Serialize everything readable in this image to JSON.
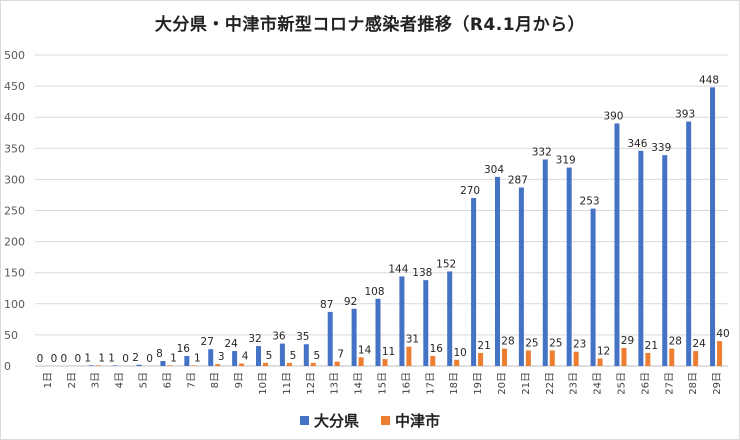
{
  "colors": {
    "oita": "#4472c4",
    "nakatsu": "#ed7d31",
    "grid": "#d9d9d9",
    "axis": "#bfbfbf"
  },
  "chart_data": {
    "type": "bar",
    "title": "大分県・中津市新型コロナ感染者推移（R4.1月から）",
    "xlabel": "",
    "ylabel": "",
    "ylim": [
      0,
      500
    ],
    "yticks": [
      "0",
      "50",
      "100",
      "150",
      "200",
      "250",
      "300",
      "350",
      "400",
      "450",
      "500"
    ],
    "grid": true,
    "legend_position": "bottom",
    "categories": [
      "1日",
      "2日",
      "3日",
      "4日",
      "5日",
      "6日",
      "7日",
      "8日",
      "9日",
      "10日",
      "11日",
      "12日",
      "13日",
      "14日",
      "15日",
      "16日",
      "17日",
      "18日",
      "19日",
      "20日",
      "21日",
      "22日",
      "23日",
      "24日",
      "25日",
      "26日",
      "27日",
      "28日",
      "29日"
    ],
    "series": [
      {
        "name": "大分県",
        "values": [
          0,
          0,
          1,
          1,
          2,
          8,
          16,
          27,
          24,
          32,
          36,
          35,
          87,
          92,
          108,
          144,
          138,
          152,
          270,
          304,
          287,
          332,
          319,
          253,
          390,
          346,
          339,
          393,
          448
        ]
      },
      {
        "name": "中津市",
        "values": [
          0,
          0,
          1,
          0,
          0,
          1,
          1,
          3,
          4,
          5,
          5,
          5,
          7,
          14,
          11,
          31,
          16,
          10,
          21,
          28,
          25,
          25,
          23,
          12,
          29,
          21,
          28,
          24,
          40
        ]
      }
    ]
  }
}
